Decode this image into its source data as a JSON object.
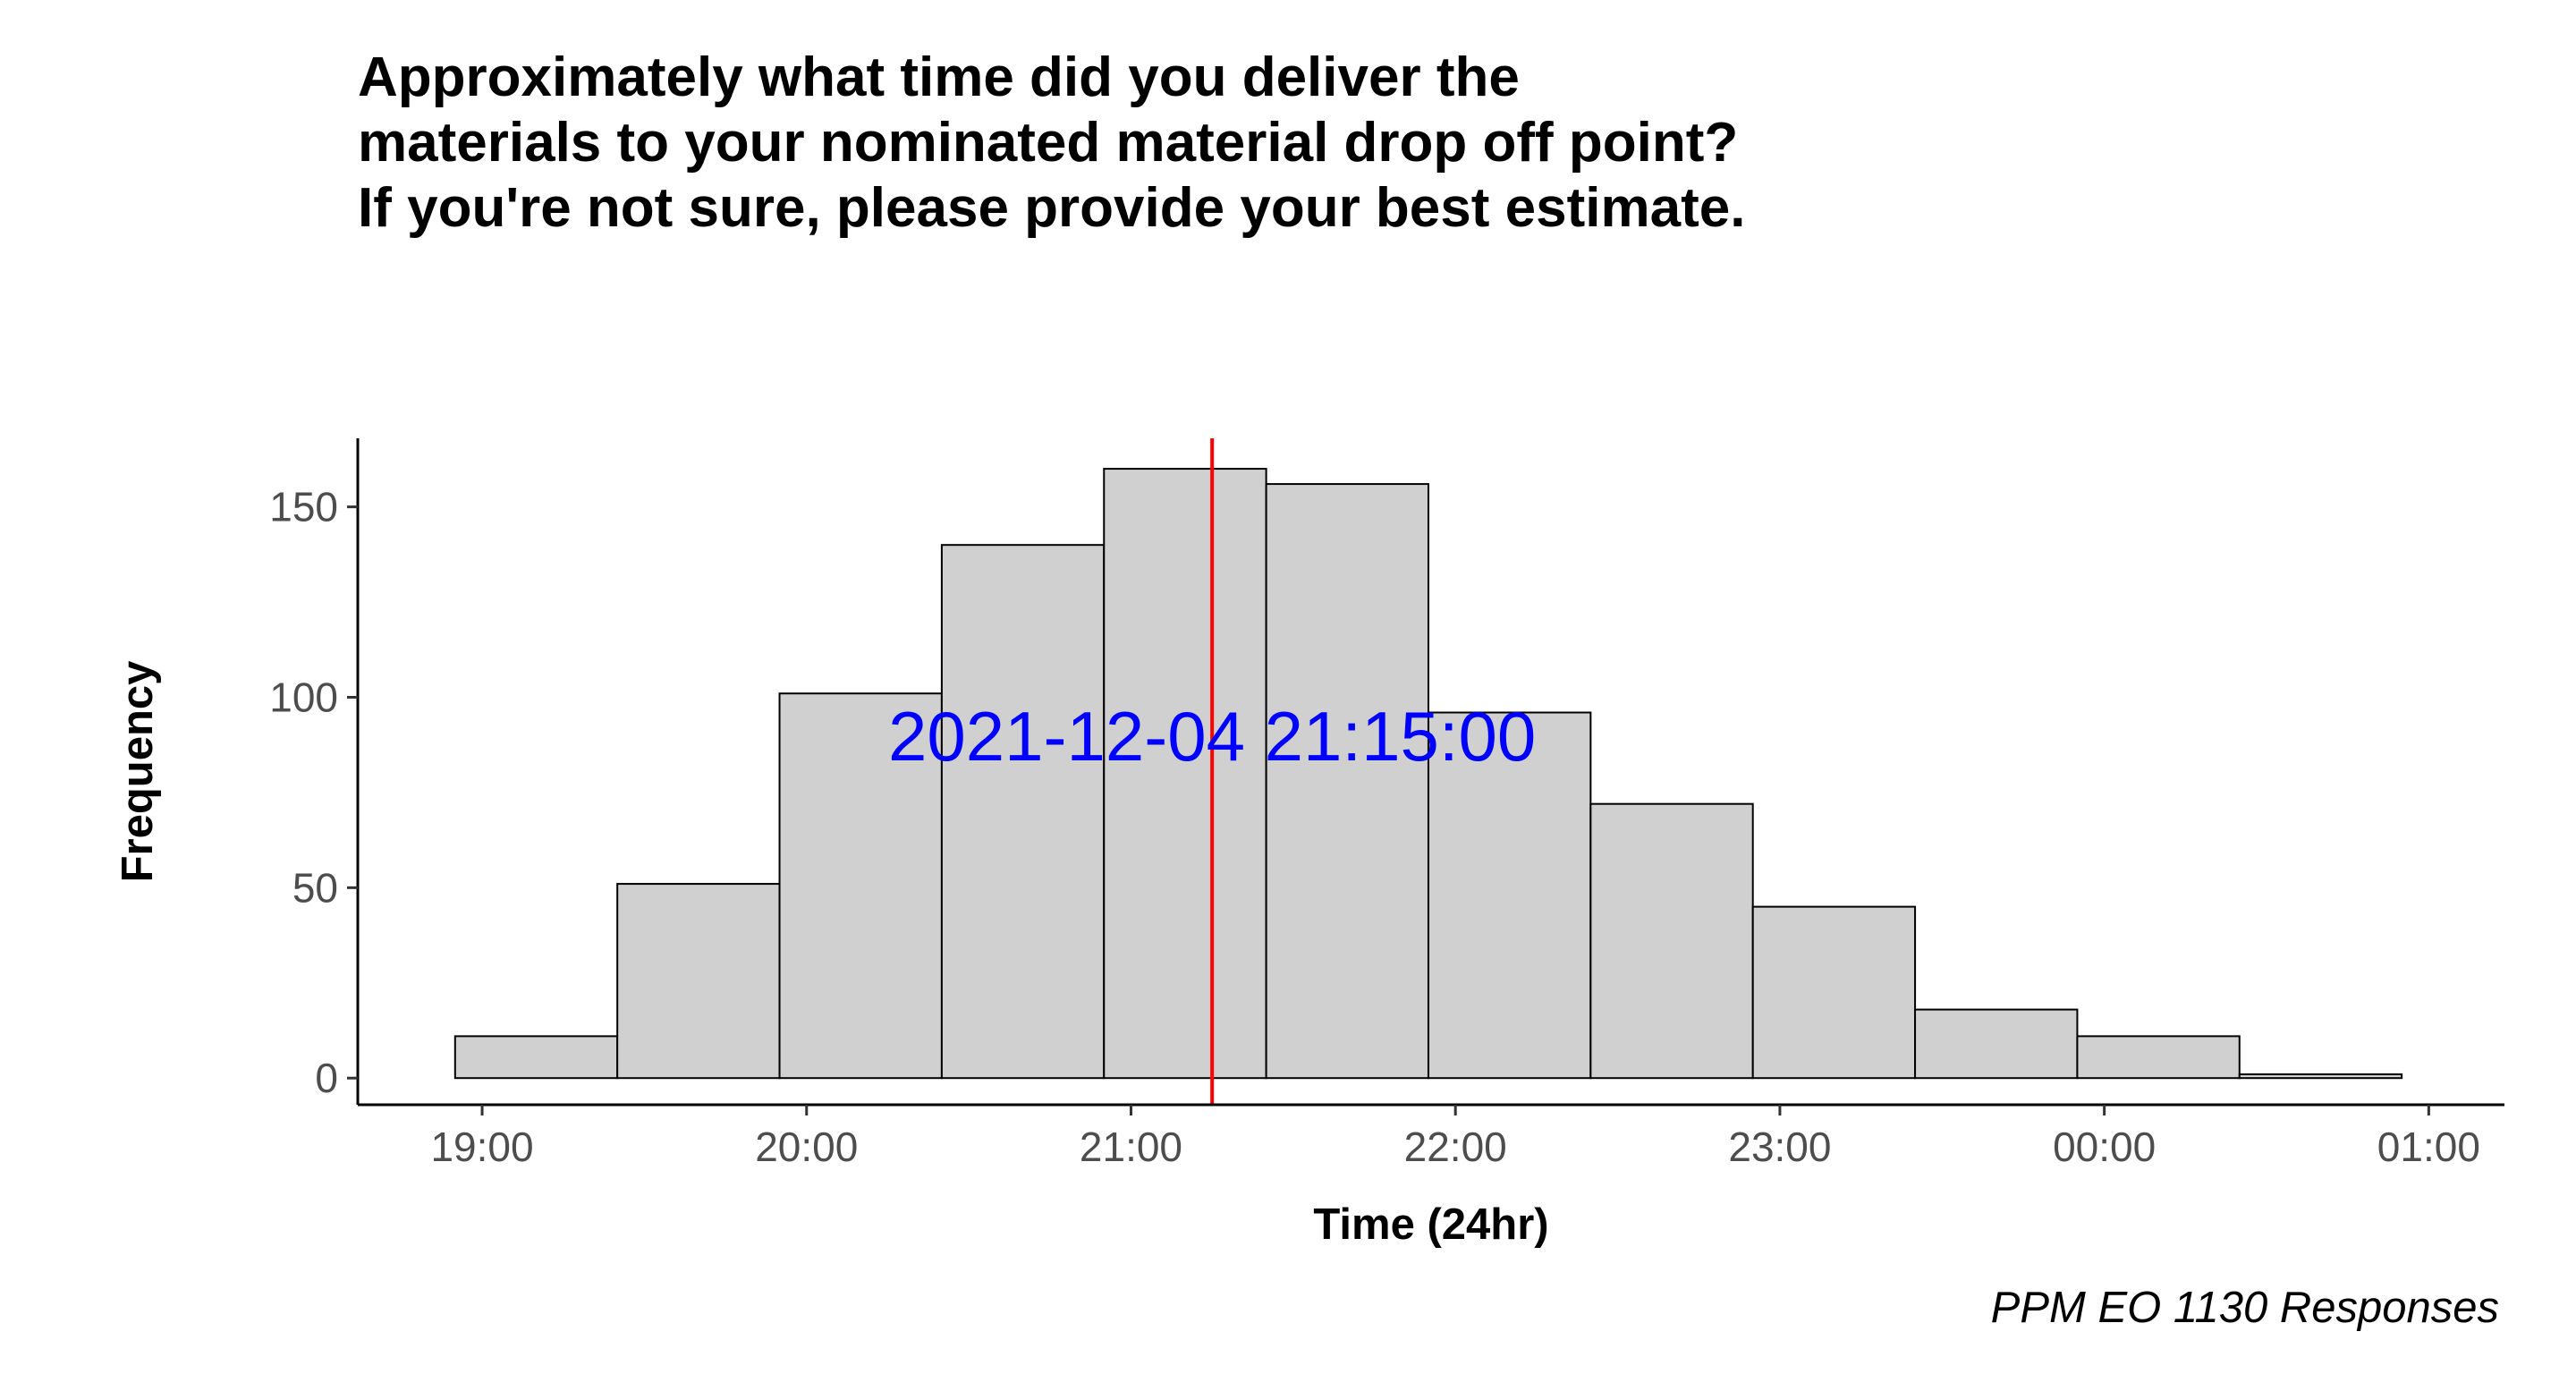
{
  "chart_data": {
    "type": "bar",
    "title": "Approximately what time did you deliver the materials to your nominated material drop off point? If you're not sure, please provide your best estimate.",
    "xlabel": "Time (24hr)",
    "ylabel": "Frequency",
    "caption": "PPM EO 1130 Responses",
    "x_ticks": [
      {
        "label": "19:00",
        "hour": 19
      },
      {
        "label": "20:00",
        "hour": 20
      },
      {
        "label": "21:00",
        "hour": 21
      },
      {
        "label": "22:00",
        "hour": 22
      },
      {
        "label": "23:00",
        "hour": 23
      },
      {
        "label": "00:00",
        "hour": 24
      },
      {
        "label": "01:00",
        "hour": 25
      }
    ],
    "y_ticks": [
      0,
      50,
      100,
      150
    ],
    "xlim": [
      "18:37",
      "01:14"
    ],
    "ylim": [
      -7,
      168
    ],
    "bins": [
      {
        "start": "18:55",
        "end": "19:25",
        "value": 11
      },
      {
        "start": "19:25",
        "end": "19:55",
        "value": 51
      },
      {
        "start": "19:55",
        "end": "20:25",
        "value": 101
      },
      {
        "start": "20:25",
        "end": "20:55",
        "value": 140
      },
      {
        "start": "20:55",
        "end": "21:25",
        "value": 160
      },
      {
        "start": "21:25",
        "end": "21:55",
        "value": 156
      },
      {
        "start": "21:55",
        "end": "22:25",
        "value": 96
      },
      {
        "start": "22:25",
        "end": "22:55",
        "value": 72
      },
      {
        "start": "22:55",
        "end": "23:25",
        "value": 45
      },
      {
        "start": "23:25",
        "end": "23:55",
        "value": 18
      },
      {
        "start": "23:55",
        "end": "00:25",
        "value": 11
      },
      {
        "start": "00:25",
        "end": "00:55",
        "value": 1
      }
    ],
    "bar_fill": "#d0d0d0",
    "bar_stroke": "#000000",
    "reference_line": {
      "time": "21:15",
      "label": "2021-12-04 21:15:00",
      "line_color": "#ff0000",
      "label_color": "#0000ff",
      "label_value": 90
    },
    "grid": false,
    "legend": "none"
  }
}
